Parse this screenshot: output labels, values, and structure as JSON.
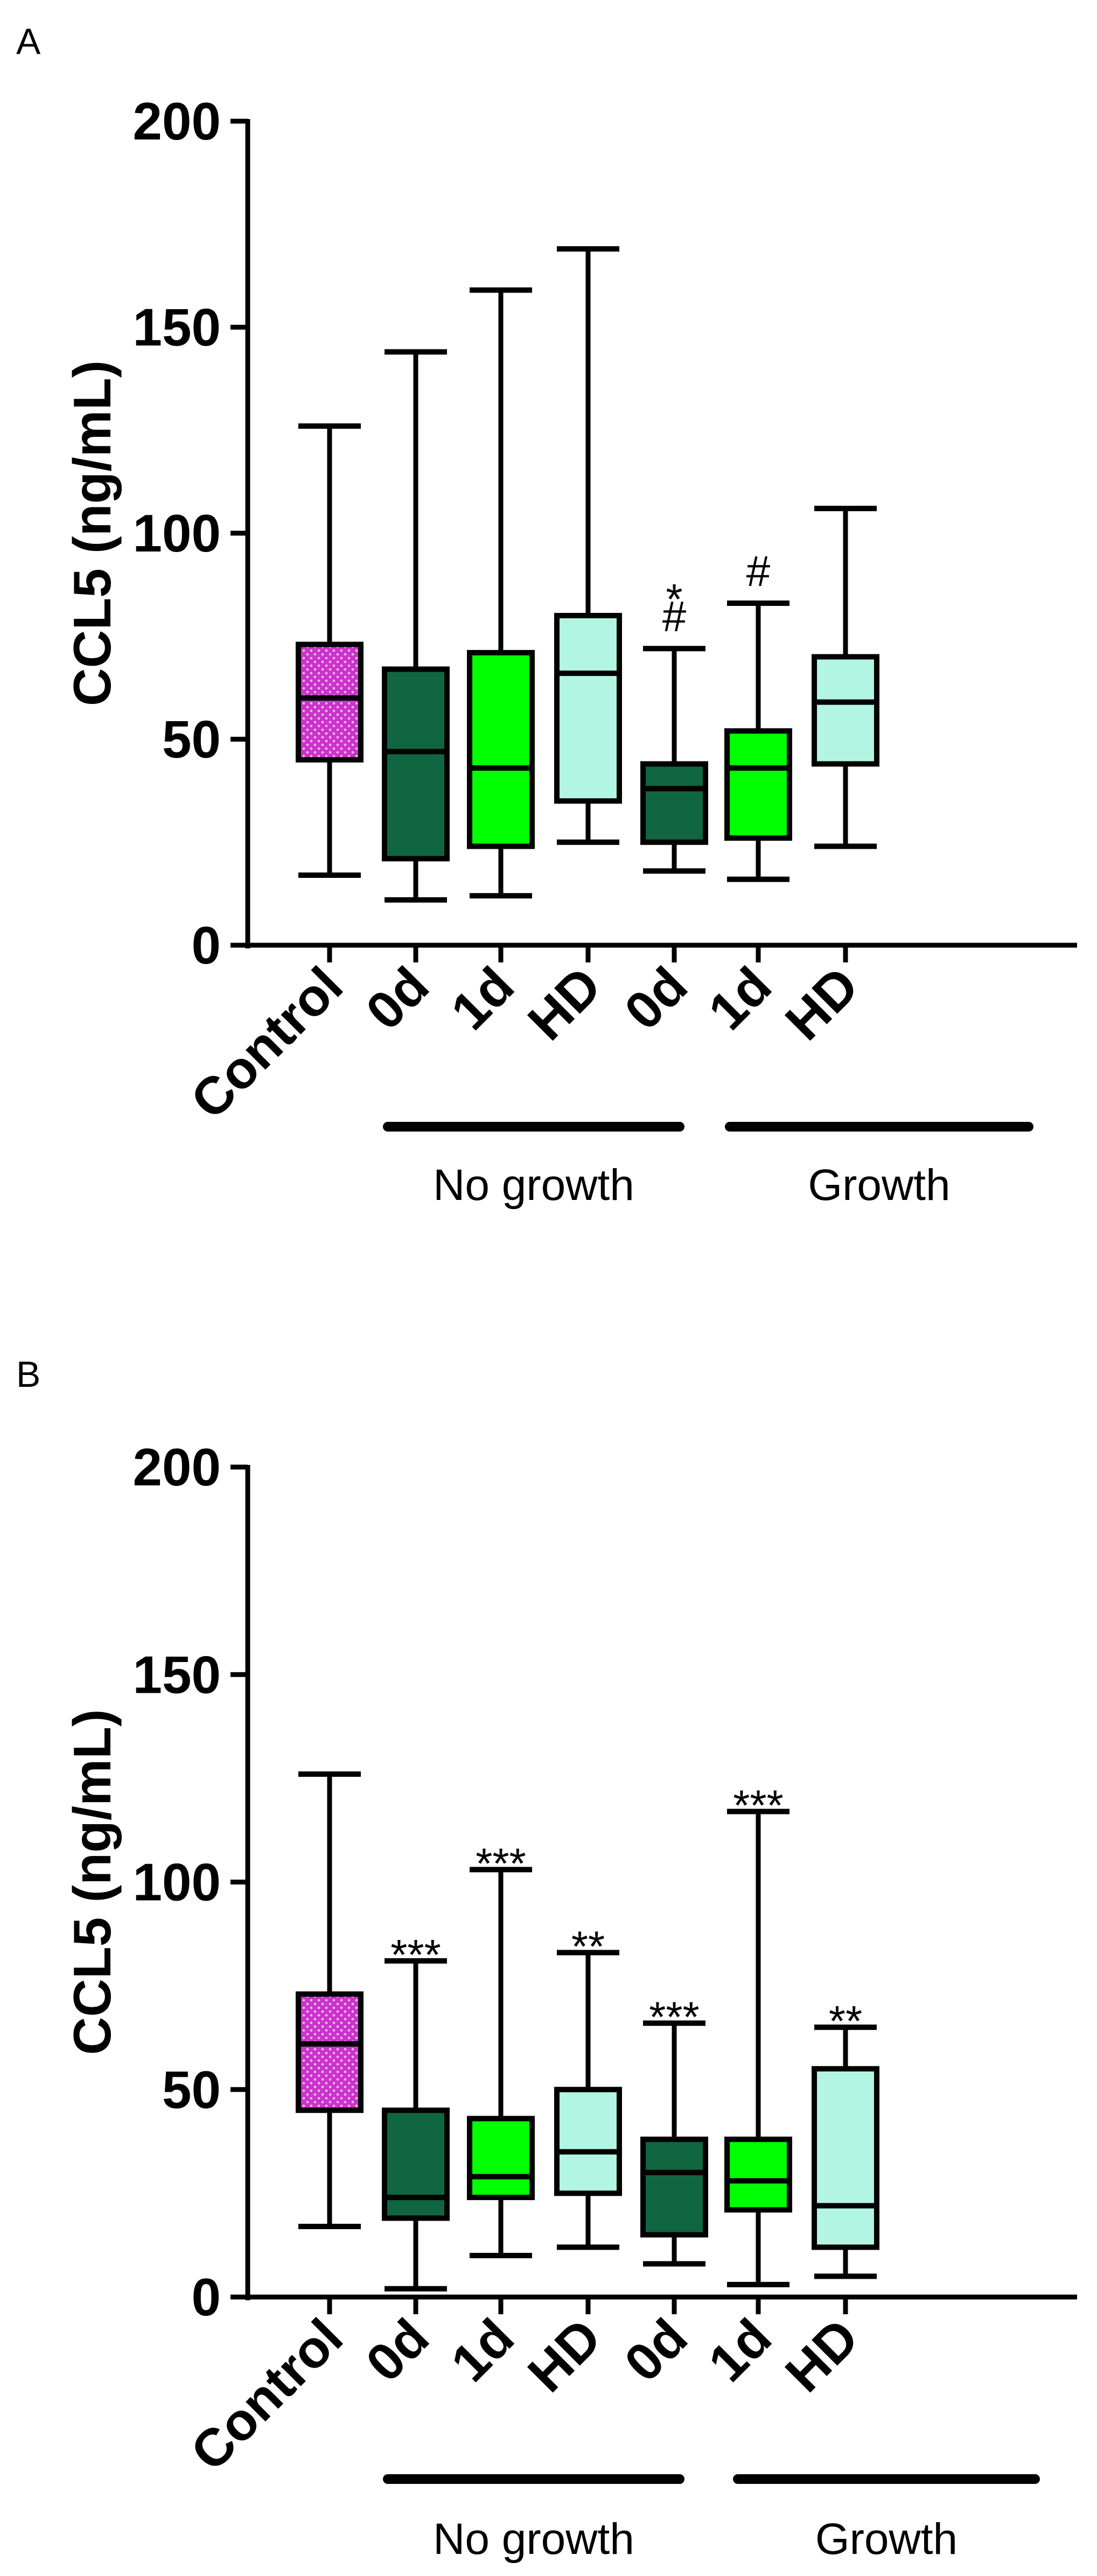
{
  "chart_data": [
    {
      "type": "boxplot",
      "panel": "A",
      "ylabel": "CCL5 (ng/mL)",
      "ylim": [
        0,
        200
      ],
      "yticks": [
        0,
        50,
        100,
        150,
        200
      ],
      "categories": [
        "Control",
        "0d",
        "1d",
        "HD",
        "0d",
        "1d",
        "HD"
      ],
      "groups": [
        {
          "label": "No growth",
          "from": 1,
          "to": 3
        },
        {
          "label": "Growth",
          "from": 4,
          "to": 6
        }
      ],
      "boxes": [
        {
          "min": 17,
          "q1": 45,
          "median": 60,
          "q3": 73,
          "max": 126,
          "color": "#cc33cc",
          "pattern": "dots",
          "annotations": []
        },
        {
          "min": 11,
          "q1": 21,
          "median": 47,
          "q3": 67,
          "max": 144,
          "color": "#0f6640",
          "pattern": "none",
          "annotations": []
        },
        {
          "min": 12,
          "q1": 24,
          "median": 43,
          "q3": 71,
          "max": 159,
          "color": "#00ff00",
          "pattern": "none",
          "annotations": []
        },
        {
          "min": 25,
          "q1": 35,
          "median": 66,
          "q3": 80,
          "max": 169,
          "color": "#b3f5e3",
          "pattern": "none",
          "annotations": []
        },
        {
          "min": 18,
          "q1": 25,
          "median": 38,
          "q3": 44,
          "max": 72,
          "color": "#0f6640",
          "pattern": "none",
          "annotations": [
            "*",
            "#"
          ]
        },
        {
          "min": 16,
          "q1": 26,
          "median": 43,
          "q3": 52,
          "max": 83,
          "color": "#00ff00",
          "pattern": "none",
          "annotations": [
            "#"
          ]
        },
        {
          "min": 24,
          "q1": 44,
          "median": 59,
          "q3": 70,
          "max": 106,
          "color": "#b3f5e3",
          "pattern": "none",
          "annotations": []
        }
      ]
    },
    {
      "type": "boxplot",
      "panel": "B",
      "ylabel": "CCL5 (ng/mL)",
      "ylim": [
        0,
        200
      ],
      "yticks": [
        0,
        50,
        100,
        150,
        200
      ],
      "categories": [
        "Control",
        "0d",
        "1d",
        "HD",
        "0d",
        "1d",
        "HD"
      ],
      "groups": [
        {
          "label": "No growth",
          "from": 1,
          "to": 3
        },
        {
          "label": "Growth",
          "from": 4,
          "to": 6
        }
      ],
      "boxes": [
        {
          "min": 17,
          "q1": 45,
          "median": 61,
          "q3": 73,
          "max": 126,
          "color": "#cc33cc",
          "pattern": "dots",
          "annotations": []
        },
        {
          "min": 2,
          "q1": 19,
          "median": 24,
          "q3": 45,
          "max": 81,
          "color": "#0f6640",
          "pattern": "none",
          "annotations": [
            "***"
          ]
        },
        {
          "min": 10,
          "q1": 24,
          "median": 29,
          "q3": 43,
          "max": 103,
          "color": "#00ff00",
          "pattern": "none",
          "annotations": [
            "***"
          ]
        },
        {
          "min": 12,
          "q1": 25,
          "median": 35,
          "q3": 50,
          "max": 83,
          "color": "#b3f5e3",
          "pattern": "none",
          "annotations": [
            "**"
          ]
        },
        {
          "min": 8,
          "q1": 15,
          "median": 30,
          "q3": 38,
          "max": 66,
          "color": "#0f6640",
          "pattern": "none",
          "annotations": [
            "***"
          ]
        },
        {
          "min": 3,
          "q1": 21,
          "median": 28,
          "q3": 38,
          "max": 117,
          "color": "#00ff00",
          "pattern": "none",
          "annotations": [
            "***"
          ]
        },
        {
          "min": 5,
          "q1": 12,
          "median": 22,
          "q3": 55,
          "max": 65,
          "color": "#b3f5e3",
          "pattern": "none",
          "annotations": [
            "**"
          ]
        }
      ]
    }
  ]
}
